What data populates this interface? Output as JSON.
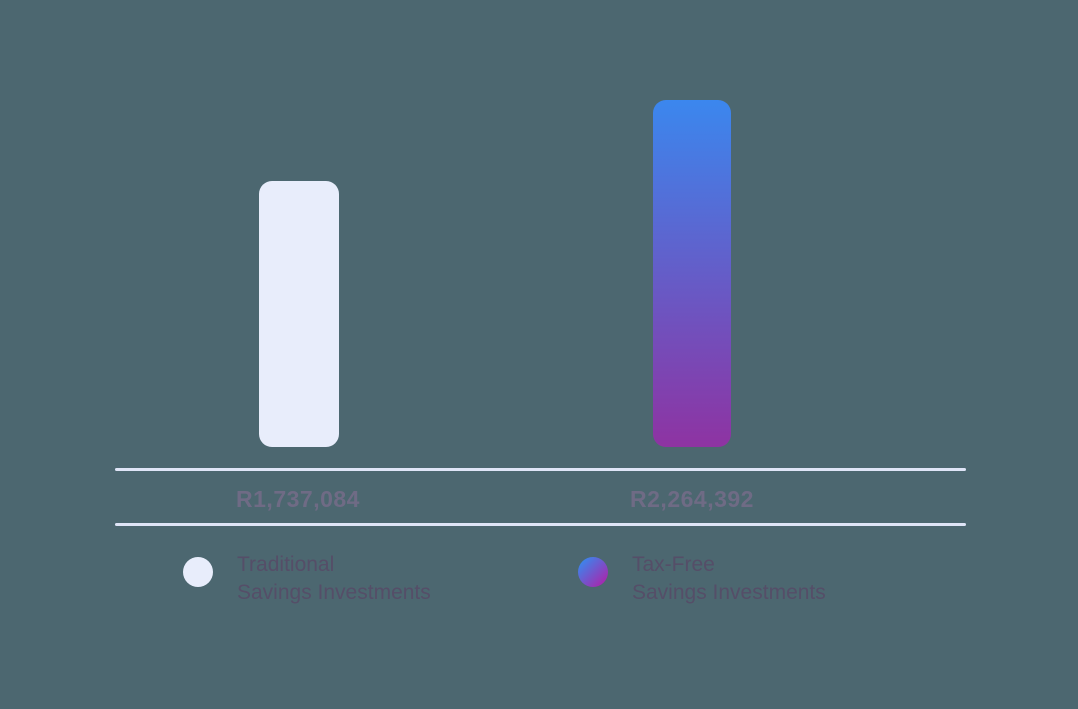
{
  "chart_data": {
    "type": "bar",
    "title": "",
    "categories": [
      "Traditional Savings Investments",
      "Tax-Free Savings Investments"
    ],
    "values": [
      1737084,
      2264392
    ],
    "value_labels": [
      "R1,737,084",
      "R2,264,392"
    ],
    "ylim": [
      0,
      2264392
    ],
    "grid": false,
    "axes_shown": false,
    "legend_position": "bottom",
    "series": [
      {
        "name": "Traditional Savings Investments",
        "value": 1737084,
        "label": "R1,737,084",
        "color": "#e8edfb"
      },
      {
        "name": "Tax-Free Savings Investments",
        "value": 2264392,
        "label": "R2,264,392",
        "color_gradient": [
          "#3b87ee",
          "#8e33a2"
        ]
      }
    ]
  },
  "legend": {
    "items": [
      {
        "line1": "Traditional",
        "line2": "Savings Investments",
        "swatch_color": "#e8edfb"
      },
      {
        "line1": "Tax-Free",
        "line2": "Savings Investments",
        "swatch_gradient": [
          "#3f82ea",
          "#a32bb0"
        ]
      }
    ]
  },
  "colors": {
    "background": "#4c6770",
    "bar_traditional": "#e8edfb",
    "bar_taxfree_top": "#3b87ee",
    "bar_taxfree_bottom": "#8e33a2",
    "legend_swatch_taxfree_from": "#3f82ea",
    "legend_swatch_taxfree_to": "#a32bb0",
    "value_text": "#6f6b85",
    "legend_text": "#554e68",
    "divider": "#dfe5f7"
  }
}
